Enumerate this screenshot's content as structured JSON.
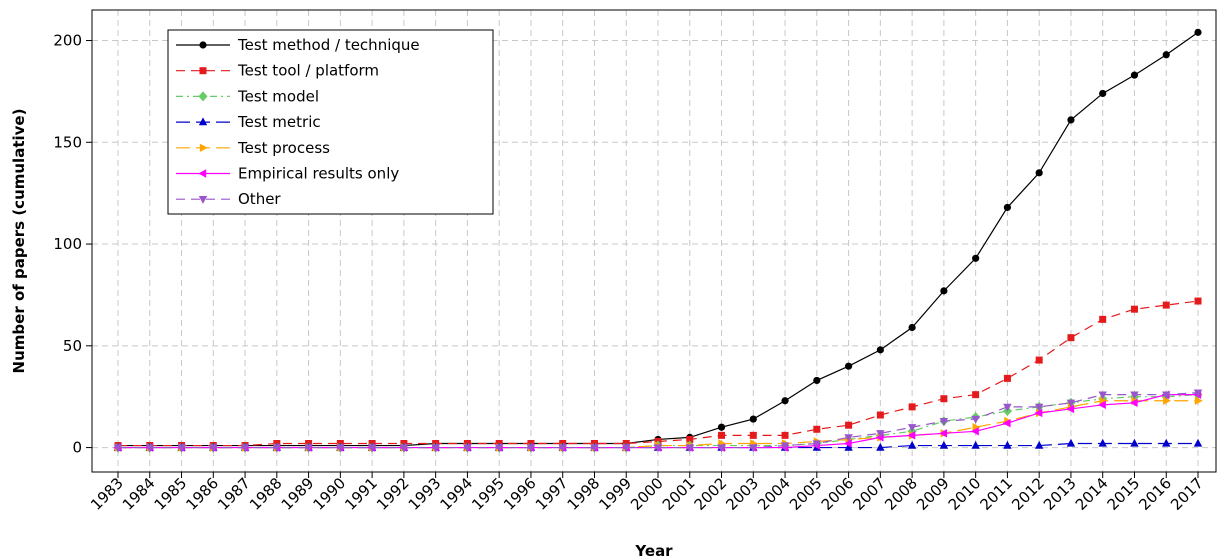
{
  "chart_data": {
    "type": "line",
    "xlabel": "Year",
    "ylabel": "Number of papers (cumulative)",
    "x": [
      "1983",
      "1984",
      "1985",
      "1986",
      "1987",
      "1988",
      "1989",
      "1990",
      "1991",
      "1992",
      "1993",
      "1994",
      "1995",
      "1996",
      "1997",
      "1998",
      "1999",
      "2000",
      "2001",
      "2002",
      "2003",
      "2004",
      "2005",
      "2006",
      "2007",
      "2008",
      "2009",
      "2010",
      "2011",
      "2012",
      "2013",
      "2014",
      "2015",
      "2016",
      "2017"
    ],
    "ylim": [
      -12,
      215
    ],
    "yticks": [
      0,
      50,
      100,
      150,
      200
    ],
    "grid": true,
    "legend_position": "top-left",
    "series": [
      {
        "name": "Test method / technique",
        "color": "#000000",
        "dash": "solid",
        "marker": "circle",
        "values": [
          1,
          1,
          1,
          1,
          1,
          1,
          1,
          1,
          1,
          1,
          2,
          2,
          2,
          2,
          2,
          2,
          2,
          4,
          5,
          10,
          14,
          23,
          33,
          40,
          48,
          59,
          77,
          93,
          118,
          135,
          161,
          174,
          183,
          193,
          204
        ]
      },
      {
        "name": "Test tool / platform",
        "color": "#e41a1c",
        "dash": "dashed",
        "marker": "square",
        "values": [
          1,
          1,
          1,
          1,
          1,
          2,
          2,
          2,
          2,
          2,
          2,
          2,
          2,
          2,
          2,
          2,
          2,
          3,
          4,
          6,
          6,
          6,
          9,
          11,
          16,
          20,
          24,
          26,
          34,
          43,
          54,
          63,
          68,
          70,
          72
        ]
      },
      {
        "name": "Test model",
        "color": "#66cc66",
        "dash": "dashdot",
        "marker": "diamond",
        "values": [
          0,
          0,
          0,
          0,
          0,
          0,
          0,
          0,
          0,
          0,
          0,
          0,
          0,
          0,
          0,
          0,
          0,
          1,
          1,
          1,
          1,
          1,
          2,
          4,
          6,
          8,
          13,
          15,
          18,
          20,
          22,
          24,
          25,
          25,
          26
        ]
      },
      {
        "name": "Test metric",
        "color": "#0000cc",
        "dash": "longdash",
        "marker": "triangle-up",
        "values": [
          0,
          0,
          0,
          0,
          0,
          0,
          0,
          0,
          0,
          0,
          0,
          0,
          0,
          0,
          0,
          0,
          0,
          0,
          0,
          0,
          0,
          0,
          0,
          0,
          0,
          1,
          1,
          1,
          1,
          1,
          2,
          2,
          2,
          2,
          2
        ]
      },
      {
        "name": "Test process",
        "color": "#ffa500",
        "dash": "longdash",
        "marker": "triangle-right",
        "values": [
          0,
          0,
          0,
          0,
          0,
          0,
          0,
          0,
          0,
          0,
          0,
          0,
          0,
          0,
          0,
          0,
          0,
          1,
          1,
          2,
          2,
          2,
          3,
          4,
          5,
          6,
          7,
          10,
          13,
          17,
          20,
          23,
          23,
          23,
          23
        ]
      },
      {
        "name": "Empirical results only",
        "color": "#ff00ff",
        "dash": "solid",
        "marker": "triangle-left",
        "values": [
          0,
          0,
          0,
          0,
          0,
          0,
          0,
          0,
          0,
          0,
          0,
          0,
          0,
          0,
          0,
          0,
          0,
          0,
          0,
          0,
          0,
          0,
          1,
          2,
          5,
          6,
          7,
          8,
          12,
          17,
          19,
          21,
          22,
          26,
          26
        ]
      },
      {
        "name": "Other",
        "color": "#9955cc",
        "dash": "dashed",
        "marker": "triangle-down",
        "values": [
          0,
          0,
          0,
          0,
          0,
          0,
          0,
          0,
          0,
          0,
          0,
          0,
          0,
          0,
          0,
          0,
          0,
          0,
          0,
          0,
          0,
          1,
          2,
          5,
          7,
          10,
          13,
          14,
          20,
          20,
          22,
          26,
          26,
          26,
          27
        ]
      }
    ]
  }
}
